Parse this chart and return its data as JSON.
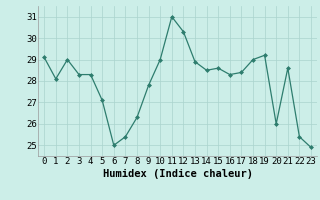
{
  "x": [
    0,
    1,
    2,
    3,
    4,
    5,
    6,
    7,
    8,
    9,
    10,
    11,
    12,
    13,
    14,
    15,
    16,
    17,
    18,
    19,
    20,
    21,
    22,
    23
  ],
  "y": [
    29.1,
    28.1,
    29.0,
    28.3,
    28.3,
    27.1,
    25.0,
    25.4,
    26.3,
    27.8,
    29.0,
    31.0,
    30.3,
    28.9,
    28.5,
    28.6,
    28.3,
    28.4,
    29.0,
    29.2,
    26.0,
    28.6,
    25.4,
    24.9
  ],
  "line_color": "#2e7d6e",
  "marker": "D",
  "marker_size": 2,
  "bg_color": "#cceee8",
  "grid_color": "#aad4ce",
  "xlabel": "Humidex (Indice chaleur)",
  "xlabel_fontsize": 7.5,
  "tick_fontsize": 6.5,
  "ylim": [
    24.5,
    31.5
  ],
  "yticks": [
    25,
    26,
    27,
    28,
    29,
    30,
    31
  ],
  "title": ""
}
